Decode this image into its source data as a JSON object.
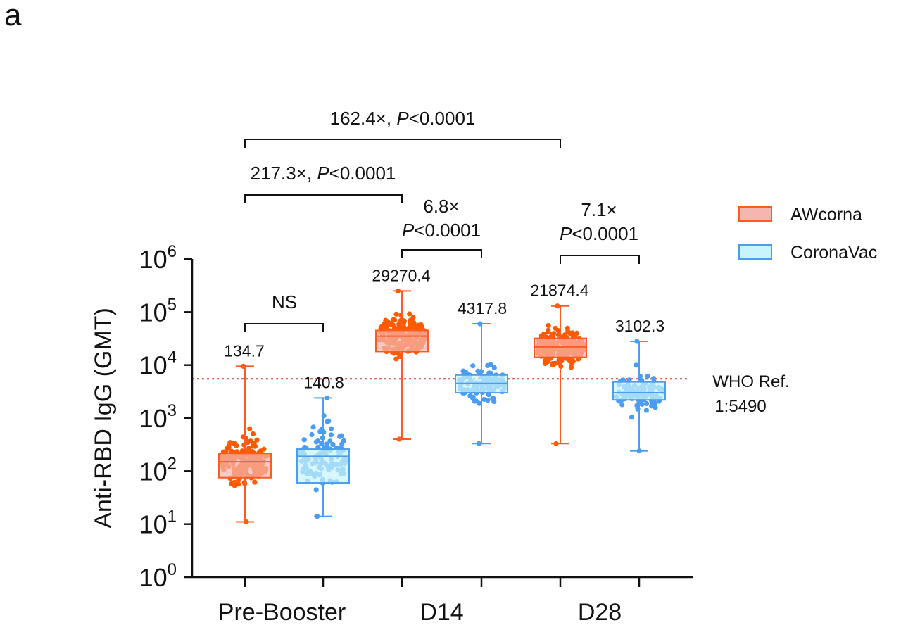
{
  "panel_label": "a",
  "chart_data": {
    "type": "box",
    "ylabel": "Anti-RBD IgG (GMT)",
    "yscale": "log10",
    "ylim": [
      1,
      1000000
    ],
    "ytick_exponents": [
      "0",
      "1",
      "2",
      "3",
      "4",
      "5",
      "6"
    ],
    "ytick_base": "10",
    "categories": [
      "Pre-Booster",
      "D14",
      "D28"
    ],
    "series": [
      {
        "name": "AWcorna",
        "fill": "#f4b6b0",
        "edge": "#ff5a1f",
        "dot": "#ff5a00"
      },
      {
        "name": "CoronaVac",
        "fill": "#c8f4fb",
        "edge": "#4a9df0",
        "dot": "#4a9df0"
      }
    ],
    "boxes": [
      {
        "category": "Pre-Booster",
        "series": "AWcorna",
        "gmt_label": "134.7",
        "gmt": 134.7,
        "min": 11,
        "q1": 75,
        "median": 150,
        "q3": 215,
        "max": 9500,
        "n_points": 180
      },
      {
        "category": "Pre-Booster",
        "series": "CoronaVac",
        "gmt_label": "140.8",
        "gmt": 140.8,
        "min": 14,
        "q1": 60,
        "median": 190,
        "q3": 260,
        "max": 2400,
        "n_points": 110
      },
      {
        "category": "D14",
        "series": "AWcorna",
        "gmt_label": "29270.4",
        "gmt": 29270.4,
        "min": 400,
        "q1": 18000,
        "median": 35000,
        "q3": 45000,
        "max": 250000,
        "n_points": 200
      },
      {
        "category": "D14",
        "series": "CoronaVac",
        "gmt_label": "4317.8",
        "gmt": 4317.8,
        "min": 330,
        "q1": 3000,
        "median": 4500,
        "q3": 6500,
        "max": 60000,
        "n_points": 110
      },
      {
        "category": "D28",
        "series": "AWcorna",
        "gmt_label": "21874.4",
        "gmt": 21874.4,
        "min": 330,
        "q1": 14000,
        "median": 22000,
        "q3": 32000,
        "max": 130000,
        "n_points": 200
      },
      {
        "category": "D28",
        "series": "CoronaVac",
        "gmt_label": "3102.3",
        "gmt": 3102.3,
        "min": 240,
        "q1": 2200,
        "median": 3000,
        "q3": 4800,
        "max": 28000,
        "n_points": 110
      }
    ],
    "reference_line": {
      "value": 5490,
      "label_line1": "WHO Ref.",
      "label_line2": "1:5490",
      "color": "#c0392b"
    },
    "comparisons": [
      {
        "from": "Pre-Booster/AWcorna",
        "to": "D28/AWcorna",
        "label": "162.4×, ",
        "p_italic": "P",
        "p_rest": "<0.0001"
      },
      {
        "from": "Pre-Booster/AWcorna",
        "to": "D14/AWcorna",
        "label": "217.3×, ",
        "p_italic": "P",
        "p_rest": "<0.0001"
      },
      {
        "from": "D14/AWcorna",
        "to": "D14/CoronaVac",
        "label": "6.8×",
        "p_italic": "P",
        "p_rest": "<0.0001"
      },
      {
        "from": "D28/AWcorna",
        "to": "D28/CoronaVac",
        "label": "7.1×",
        "p_italic": "P",
        "p_rest": "<0.0001"
      },
      {
        "from": "Pre-Booster/AWcorna",
        "to": "Pre-Booster/CoronaVac",
        "label": "NS"
      }
    ],
    "legend_position": "right"
  }
}
